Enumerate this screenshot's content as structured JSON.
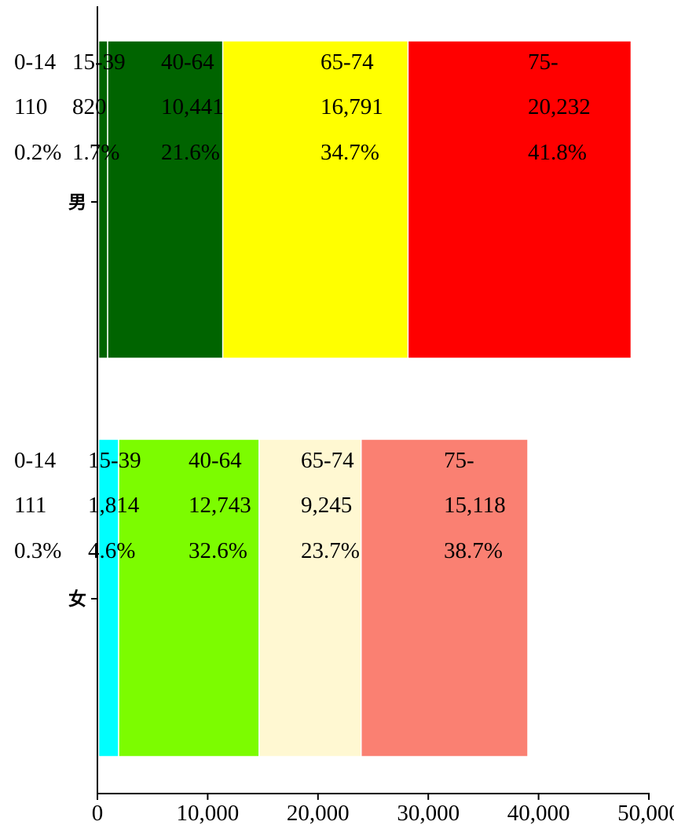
{
  "chart_data": {
    "type": "bar",
    "orientation": "horizontal",
    "stacked": true,
    "xlim": [
      0,
      50000
    ],
    "x_ticks": [
      0,
      10000,
      20000,
      30000,
      40000,
      50000
    ],
    "x_tick_labels": [
      "0",
      "10,000",
      "20,000",
      "30,000",
      "40,000",
      "50,000"
    ],
    "categories": [
      "男",
      "女"
    ],
    "segments": [
      [
        {
          "age": "0-14",
          "count_label": "110",
          "pct": "0.2%",
          "value": 110,
          "color": "#1e8fff"
        },
        {
          "age": "15-39",
          "count_label": "820",
          "pct": "1.7%",
          "value": 820,
          "color": "#006400"
        },
        {
          "age": "40-64",
          "count_label": "10,441",
          "pct": "21.6%",
          "value": 10441,
          "color": "#006400"
        },
        {
          "age": "65-74",
          "count_label": "16,791",
          "pct": "34.7%",
          "value": 16791,
          "color": "#ffff00"
        },
        {
          "age": "75-",
          "count_label": "20,232",
          "pct": "41.8%",
          "value": 20232,
          "color": "#ff0000"
        }
      ],
      [
        {
          "age": "0-14",
          "count_label": "111",
          "pct": "0.3%",
          "value": 111,
          "color": "#00ffff"
        },
        {
          "age": "15-39",
          "count_label": "1,814",
          "pct": "4.6%",
          "value": 1814,
          "color": "#00ffff"
        },
        {
          "age": "40-64",
          "count_label": "12,743",
          "pct": "32.6%",
          "value": 12743,
          "color": "#7cfc00"
        },
        {
          "age": "65-74",
          "count_label": "9,245",
          "pct": "23.7%",
          "value": 9245,
          "color": "#fff8d2"
        },
        {
          "age": "75-",
          "count_label": "15,118",
          "pct": "38.7%",
          "value": 15118,
          "color": "#fa8072"
        }
      ]
    ],
    "grid": false,
    "legend": "none"
  }
}
